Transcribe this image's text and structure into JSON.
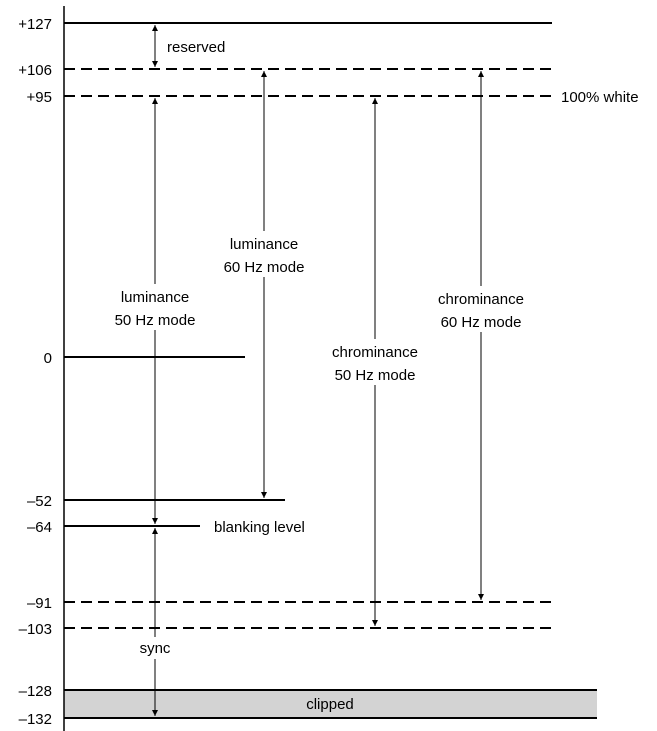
{
  "levels": {
    "l127": "+127",
    "l106": "+106",
    "l95": "+95",
    "l0": "0",
    "lm52": "–52",
    "lm64": "–64",
    "lm91": "–91",
    "lm103": "–103",
    "lm128": "–128",
    "lm132": "–132"
  },
  "labels": {
    "reserved": "reserved",
    "white": "100% white",
    "blanking": "blanking level",
    "sync": "sync",
    "clipped": "clipped",
    "lum60_a": "luminance",
    "lum60_b": "60 Hz mode",
    "lum50_a": "luminance",
    "lum50_b": "50 Hz mode",
    "chr50_a": "chrominance",
    "chr50_b": "50 Hz mode",
    "chr60_a": "chrominance",
    "chr60_b": "60 Hz mode"
  },
  "colors": {
    "line": "#000000",
    "clipped_fill": "#d3d3d3"
  }
}
